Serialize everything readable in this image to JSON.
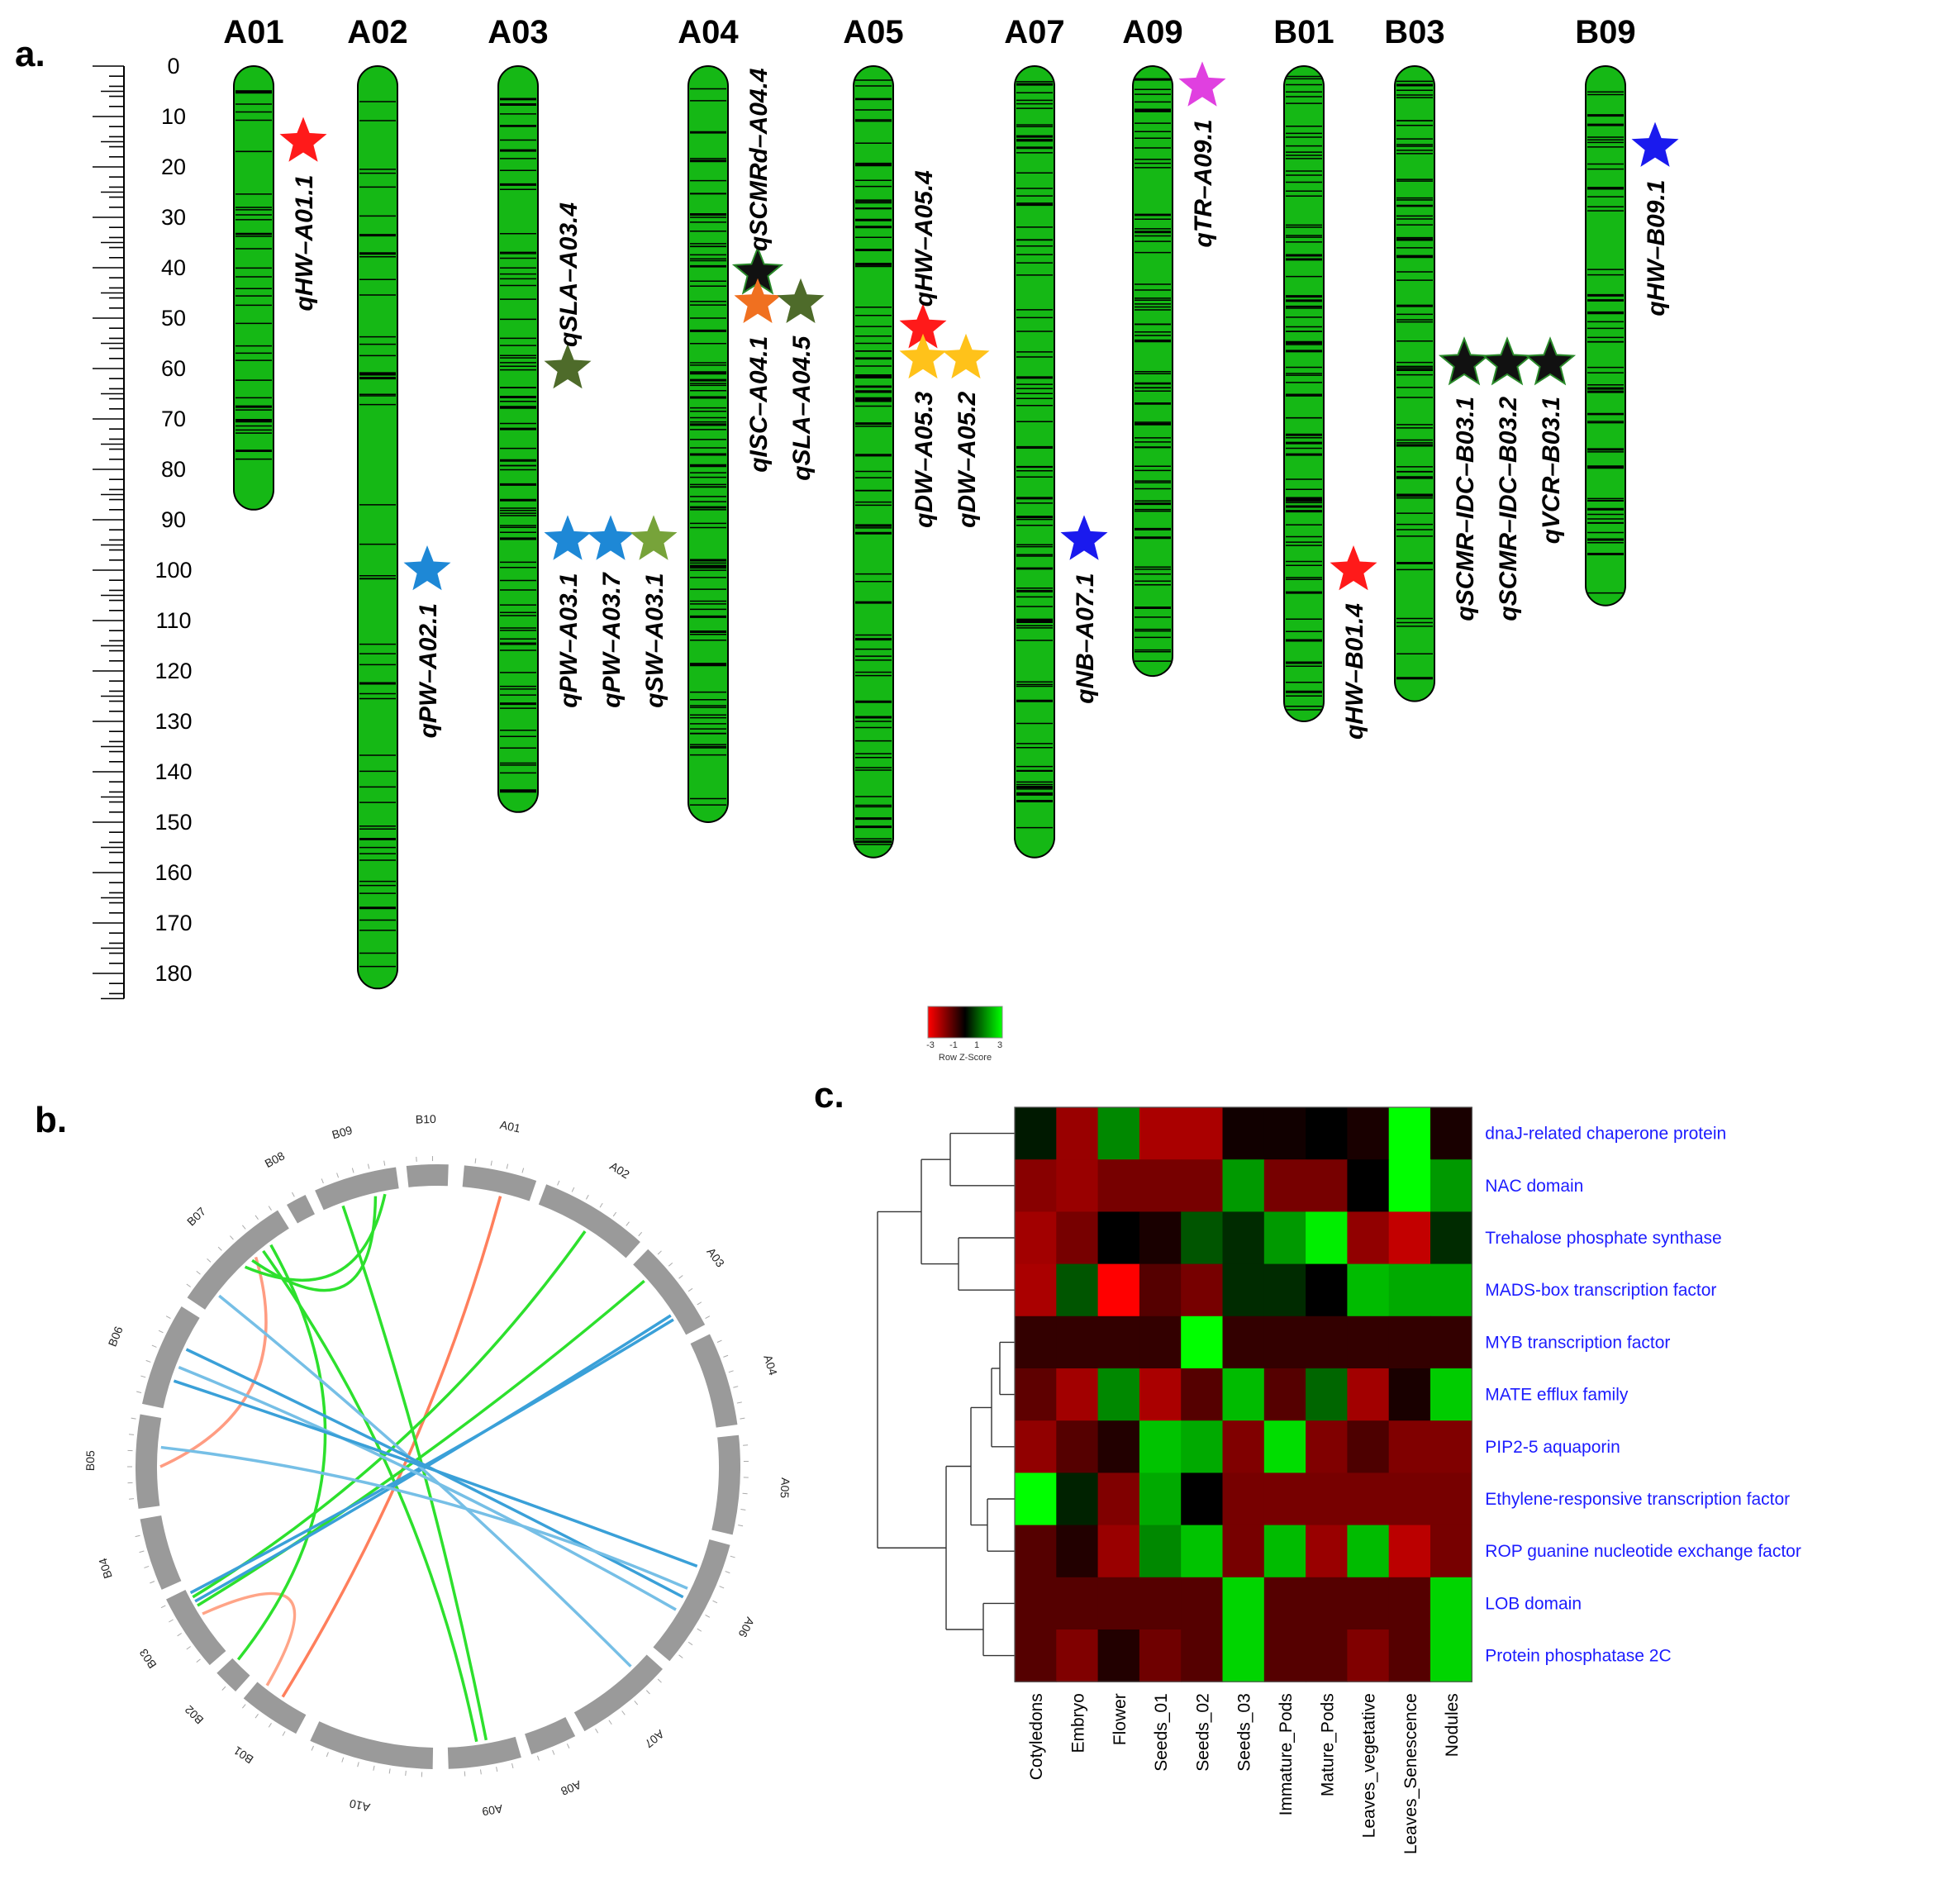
{
  "panel_letters": [
    "a.",
    "b.",
    "c."
  ],
  "ruler": {
    "ticks": [
      "0",
      "10",
      "20",
      "30",
      "40",
      "50",
      "60",
      "70",
      "80",
      "90",
      "100",
      "110",
      "120",
      "130",
      "140",
      "150",
      "160",
      "170",
      "180"
    ]
  },
  "chromosomes": [
    {
      "name": "A01",
      "length": 88,
      "seed": 11,
      "density": 38
    },
    {
      "name": "A02",
      "length": 183,
      "seed": 23,
      "density": 52
    },
    {
      "name": "A03",
      "length": 148,
      "seed": 37,
      "density": 80
    },
    {
      "name": "A04",
      "length": 150,
      "seed": 41,
      "density": 95
    },
    {
      "name": "A05",
      "length": 157,
      "seed": 53,
      "density": 90
    },
    {
      "name": "A07",
      "length": 157,
      "seed": 67,
      "density": 85
    },
    {
      "name": "A09",
      "length": 121,
      "seed": 71,
      "density": 75
    },
    {
      "name": "B01",
      "length": 130,
      "seed": 83,
      "density": 80
    },
    {
      "name": "B03",
      "length": 126,
      "seed": 97,
      "density": 70
    },
    {
      "name": "B09",
      "length": 107,
      "seed": 101,
      "density": 55
    }
  ],
  "qtls": [
    {
      "label": "qHW–A01.1",
      "chr": 0,
      "pos": 15,
      "color": "#ff1a1a",
      "stack": 0
    },
    {
      "label": "qPW–A02.1",
      "chr": 1,
      "pos": 100,
      "color": "#1e88d6",
      "stack": 0
    },
    {
      "label": "qSLA–A03.4",
      "chr": 2,
      "pos": 60,
      "color": "#4e6b2a",
      "stack": 0,
      "label_above": true
    },
    {
      "label": "qPW–A03.1",
      "chr": 2,
      "pos": 94,
      "color": "#1e88d6",
      "stack": 0
    },
    {
      "label": "qPW–A03.7",
      "chr": 2,
      "pos": 94,
      "color": "#1e88d6",
      "stack": 1
    },
    {
      "label": "qSW–A03.1",
      "chr": 2,
      "pos": 94,
      "color": "#77a33a",
      "stack": 2
    },
    {
      "label": "qSCMRd–A04.4",
      "chr": 3,
      "pos": 41,
      "color": "#111111",
      "stack": 0,
      "label_above": true
    },
    {
      "label": "qISC–A04.1",
      "chr": 3,
      "pos": 47,
      "color": "#f07020",
      "stack": 0
    },
    {
      "label": "qSLA–A04.5",
      "chr": 3,
      "pos": 47,
      "color": "#4e6b2a",
      "stack": 1
    },
    {
      "label": "qHW–A05.4",
      "chr": 4,
      "pos": 52,
      "color": "#ff1a1a",
      "stack": 0,
      "label_above": true
    },
    {
      "label": "qDW–A05.3",
      "chr": 4,
      "pos": 58,
      "color": "#ffc21a",
      "stack": 0
    },
    {
      "label": "qDW–A05.2",
      "chr": 4,
      "pos": 58,
      "color": "#ffc21a",
      "stack": 1
    },
    {
      "label": "qNB–A07.1",
      "chr": 5,
      "pos": 94,
      "color": "#1a1aee",
      "stack": 0
    },
    {
      "label": "qTR–A09.1",
      "chr": 6,
      "pos": 4,
      "color": "#e040e0",
      "stack": 0
    },
    {
      "label": "qHW–B01.4",
      "chr": 7,
      "pos": 100,
      "color": "#ff1a1a",
      "stack": 0
    },
    {
      "label": "qSCMR–IDC–B03.1",
      "chr": 8,
      "pos": 59,
      "color": "#111111",
      "stack": 0
    },
    {
      "label": "qSCMR–IDC–B03.2",
      "chr": 8,
      "pos": 59,
      "color": "#111111",
      "stack": 1
    },
    {
      "label": "qVCR–B03.1",
      "chr": 8,
      "pos": 59,
      "color": "#111111",
      "stack": 2
    },
    {
      "label": "qHW–B09.1",
      "chr": 9,
      "pos": 16,
      "color": "#1a1aee",
      "stack": 0
    }
  ],
  "circos": {
    "segments": [
      {
        "name": "A01",
        "start": -85,
        "end": -71
      },
      {
        "name": "A02",
        "start": -69,
        "end": -48
      },
      {
        "name": "A03",
        "start": -46,
        "end": -28
      },
      {
        "name": "A04",
        "start": -26,
        "end": -8
      },
      {
        "name": "A05",
        "start": -6,
        "end": 13
      },
      {
        "name": "A06",
        "start": 15,
        "end": 40
      },
      {
        "name": "A07",
        "start": 42,
        "end": 61
      },
      {
        "name": "A08",
        "start": 63,
        "end": 72
      },
      {
        "name": "A09",
        "start": 74,
        "end": 88
      },
      {
        "name": "A10",
        "start": 91,
        "end": 115
      },
      {
        "name": "B01",
        "start": 118,
        "end": 130
      },
      {
        "name": "B02",
        "start": 132,
        "end": 137
      },
      {
        "name": "B03",
        "start": 139,
        "end": 154
      },
      {
        "name": "B04",
        "start": 156,
        "end": 170
      },
      {
        "name": "B05",
        "start": 172,
        "end": 190
      },
      {
        "name": "B06",
        "start": 192,
        "end": 212
      },
      {
        "name": "B07",
        "start": 214,
        "end": 238
      },
      {
        "name": "B08",
        "start": 240,
        "end": 244
      },
      {
        "name": "B09",
        "start": 246,
        "end": 262
      },
      {
        "name": "B10",
        "start": 264,
        "end": 272
      }
    ],
    "links": [
      {
        "a": -77,
        "b": 124,
        "color": "#ff7f5c"
      },
      {
        "a": 128,
        "b": 148,
        "color": "#ffa487",
        "curve": 0.55
      },
      {
        "a": 180,
        "b": 229,
        "color": "#ff9c82",
        "curve": 0.45
      },
      {
        "a": -58,
        "b": 152,
        "color": "#2de02d"
      },
      {
        "a": -42,
        "b": 150,
        "color": "#2de02d"
      },
      {
        "a": 250,
        "b": 80,
        "color": "#2de02d"
      },
      {
        "a": 231,
        "b": 82,
        "color": "#2de02d"
      },
      {
        "a": 136,
        "b": 233,
        "color": "#2de02d"
      },
      {
        "a": 228,
        "b": 257,
        "color": "#2de02d",
        "curve": 0.5
      },
      {
        "a": 226,
        "b": 259,
        "color": "#2de02d",
        "curve": 0.38
      },
      {
        "a": -33,
        "b": 151,
        "color": "#3aa0d8"
      },
      {
        "a": -32,
        "b": 153,
        "color": "#3aa0d8"
      },
      {
        "a": 218,
        "b": 46,
        "color": "#76bfe6"
      },
      {
        "a": 205,
        "b": 28,
        "color": "#3aa0d8"
      },
      {
        "a": 201,
        "b": 31,
        "color": "#76bfe6"
      },
      {
        "a": 198,
        "b": 21,
        "color": "#3aa0d8"
      },
      {
        "a": 184,
        "b": 26,
        "color": "#76bfe6"
      }
    ]
  },
  "heatmap": {
    "key_ticks": [
      "-3",
      "-1",
      "1",
      "3"
    ],
    "key_label": "Row Z-Score",
    "rows": [
      "dnaJ-related  chaperone  protein",
      "NAC  domain",
      "Trehalose  phosphate  synthase",
      "MADS-box  transcription  factor",
      "MYB  transcription  factor",
      "MATE  efflux  family",
      "PIP2-5  aquaporin",
      "Ethylene-responsive  transcription  factor",
      "ROP  guanine  nucleotide  exchange  factor",
      "LOB  domain",
      "Protein  phosphatase  2C"
    ],
    "cols": [
      "Cotyledons",
      "Embryo",
      "Flower",
      "Seeds_01",
      "Seeds_02",
      "Seeds_03",
      "Immature_Pods",
      "Mature_Pods",
      "Leaves_vegetative",
      "Leaves_Senescence",
      "Nodules"
    ],
    "values": [
      [
        0.3,
        -1.8,
        1.6,
        -2.0,
        -2.0,
        -0.2,
        -0.2,
        0.0,
        -0.3,
        3.0,
        -0.3
      ],
      [
        -1.6,
        -1.8,
        -1.4,
        -1.4,
        -1.4,
        1.8,
        -1.4,
        -1.4,
        0.0,
        3.0,
        1.8
      ],
      [
        -1.9,
        -1.4,
        0.0,
        -0.3,
        1.0,
        0.5,
        1.8,
        2.8,
        -1.7,
        -2.3,
        0.5
      ],
      [
        -2.0,
        1.0,
        -3.0,
        -1.0,
        -1.4,
        0.5,
        0.5,
        0.0,
        2.2,
        2.0,
        2.0
      ],
      [
        -0.6,
        -0.6,
        -0.6,
        -0.6,
        3.0,
        -0.6,
        -0.6,
        -0.6,
        -0.6,
        -0.6,
        -0.6
      ],
      [
        -1.1,
        -1.9,
        1.6,
        -2.0,
        -1.0,
        2.2,
        -1.0,
        1.2,
        -1.9,
        -0.3,
        2.4
      ],
      [
        -1.7,
        -1.0,
        -0.4,
        2.3,
        2.0,
        -1.5,
        2.6,
        -1.5,
        -0.9,
        -1.5,
        -1.5
      ],
      [
        3.0,
        0.4,
        -1.5,
        2.0,
        0.0,
        -1.4,
        -1.4,
        -1.4,
        -1.4,
        -1.4,
        -1.4
      ],
      [
        -1.0,
        -0.4,
        -1.8,
        1.6,
        2.3,
        -1.4,
        2.2,
        -1.8,
        2.2,
        -2.2,
        -1.4
      ],
      [
        -1.0,
        -1.0,
        -1.0,
        -1.0,
        -1.0,
        2.5,
        -1.0,
        -1.0,
        -1.0,
        -1.0,
        2.5
      ],
      [
        -1.0,
        -1.5,
        -0.4,
        -1.3,
        -1.0,
        2.5,
        -1.0,
        -1.0,
        -1.5,
        -1.0,
        2.5
      ]
    ]
  }
}
